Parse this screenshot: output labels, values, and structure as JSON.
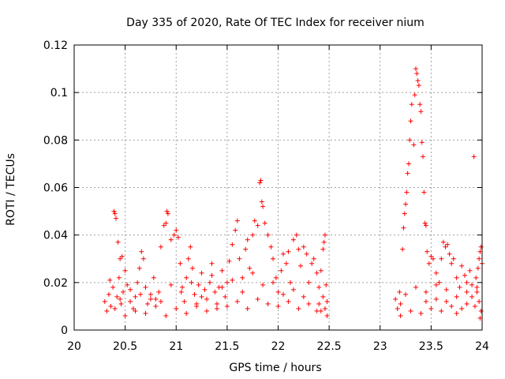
{
  "chart_data": {
    "type": "scatter",
    "title": "Day 335 of 2020, Rate Of TEC Index for receiver nium",
    "xlabel": "GPS time / hours",
    "ylabel": "ROTI / TECUs",
    "xlim": [
      20,
      24
    ],
    "ylim": [
      0,
      0.12
    ],
    "xticks": [
      "20",
      "20.5",
      "21",
      "21.5",
      "22",
      "22.5",
      "23",
      "23.5",
      "24"
    ],
    "yticks": [
      "0",
      "0.02",
      "0.04",
      "0.06",
      "0.08",
      "0.1",
      "0.12"
    ],
    "grid": true,
    "marker": "+",
    "color": "#ff0000",
    "series": [
      {
        "name": "ROTI",
        "points": [
          [
            20.3,
            0.012
          ],
          [
            20.32,
            0.008
          ],
          [
            20.34,
            0.015
          ],
          [
            20.36,
            0.01
          ],
          [
            20.38,
            0.018
          ],
          [
            20.4,
            0.009
          ],
          [
            20.42,
            0.014
          ],
          [
            20.44,
            0.022
          ],
          [
            20.46,
            0.011
          ],
          [
            20.48,
            0.016
          ],
          [
            20.39,
            0.05
          ],
          [
            20.4,
            0.049
          ],
          [
            20.41,
            0.047
          ],
          [
            20.43,
            0.037
          ],
          [
            20.45,
            0.03
          ],
          [
            20.47,
            0.031
          ],
          [
            20.5,
            0.025
          ],
          [
            20.52,
            0.019
          ],
          [
            20.55,
            0.012
          ],
          [
            20.58,
            0.009
          ],
          [
            20.6,
            0.014
          ],
          [
            20.62,
            0.02
          ],
          [
            20.64,
            0.026
          ],
          [
            20.66,
            0.033
          ],
          [
            20.68,
            0.03
          ],
          [
            20.7,
            0.018
          ],
          [
            20.72,
            0.011
          ],
          [
            20.75,
            0.015
          ],
          [
            20.78,
            0.022
          ],
          [
            20.8,
            0.013
          ],
          [
            20.83,
            0.016
          ],
          [
            20.85,
            0.035
          ],
          [
            20.88,
            0.044
          ],
          [
            20.9,
            0.045
          ],
          [
            20.91,
            0.05
          ],
          [
            20.92,
            0.049
          ],
          [
            20.95,
            0.038
          ],
          [
            20.98,
            0.04
          ],
          [
            21.0,
            0.042
          ],
          [
            21.02,
            0.039
          ],
          [
            21.04,
            0.028
          ],
          [
            21.06,
            0.018
          ],
          [
            21.08,
            0.012
          ],
          [
            21.1,
            0.022
          ],
          [
            21.12,
            0.03
          ],
          [
            21.14,
            0.035
          ],
          [
            21.16,
            0.026
          ],
          [
            21.18,
            0.015
          ],
          [
            21.2,
            0.01
          ],
          [
            21.22,
            0.019
          ],
          [
            21.25,
            0.024
          ],
          [
            21.28,
            0.017
          ],
          [
            21.3,
            0.013
          ],
          [
            21.33,
            0.02
          ],
          [
            21.35,
            0.028
          ],
          [
            21.38,
            0.016
          ],
          [
            21.4,
            0.011
          ],
          [
            21.42,
            0.018
          ],
          [
            21.45,
            0.025
          ],
          [
            21.48,
            0.014
          ],
          [
            21.5,
            0.02
          ],
          [
            21.52,
            0.029
          ],
          [
            21.55,
            0.036
          ],
          [
            21.58,
            0.042
          ],
          [
            21.6,
            0.046
          ],
          [
            21.62,
            0.03
          ],
          [
            21.65,
            0.022
          ],
          [
            21.68,
            0.034
          ],
          [
            21.7,
            0.038
          ],
          [
            21.72,
            0.026
          ],
          [
            21.75,
            0.04
          ],
          [
            21.77,
            0.046
          ],
          [
            21.8,
            0.044
          ],
          [
            21.82,
            0.062
          ],
          [
            21.83,
            0.063
          ],
          [
            21.84,
            0.054
          ],
          [
            21.85,
            0.052
          ],
          [
            21.87,
            0.045
          ],
          [
            21.9,
            0.04
          ],
          [
            21.93,
            0.035
          ],
          [
            21.95,
            0.03
          ],
          [
            21.98,
            0.022
          ],
          [
            22.0,
            0.016
          ],
          [
            22.03,
            0.025
          ],
          [
            22.05,
            0.032
          ],
          [
            22.08,
            0.028
          ],
          [
            22.1,
            0.033
          ],
          [
            22.12,
            0.02
          ],
          [
            22.15,
            0.038
          ],
          [
            22.18,
            0.04
          ],
          [
            22.2,
            0.034
          ],
          [
            22.22,
            0.027
          ],
          [
            22.25,
            0.035
          ],
          [
            22.28,
            0.032
          ],
          [
            22.3,
            0.02
          ],
          [
            22.33,
            0.028
          ],
          [
            22.35,
            0.03
          ],
          [
            22.38,
            0.024
          ],
          [
            22.4,
            0.018
          ],
          [
            22.42,
            0.025
          ],
          [
            22.44,
            0.034
          ],
          [
            22.45,
            0.037
          ],
          [
            22.46,
            0.04
          ],
          [
            22.47,
            0.019
          ],
          [
            22.48,
            0.012
          ],
          [
            22.48,
            0.006
          ],
          [
            22.46,
            0.009
          ],
          [
            22.44,
            0.014
          ],
          [
            22.42,
            0.008
          ],
          [
            22.4,
            0.011
          ],
          [
            20.5,
            0.006
          ],
          [
            20.6,
            0.008
          ],
          [
            20.7,
            0.007
          ],
          [
            20.8,
            0.01
          ],
          [
            20.9,
            0.006
          ],
          [
            21.0,
            0.009
          ],
          [
            21.1,
            0.007
          ],
          [
            21.2,
            0.011
          ],
          [
            21.3,
            0.008
          ],
          [
            21.4,
            0.009
          ],
          [
            21.5,
            0.01
          ],
          [
            21.6,
            0.012
          ],
          [
            21.7,
            0.009
          ],
          [
            21.8,
            0.013
          ],
          [
            21.9,
            0.011
          ],
          [
            22.0,
            0.01
          ],
          [
            22.1,
            0.012
          ],
          [
            22.2,
            0.009
          ],
          [
            22.3,
            0.011
          ],
          [
            22.38,
            0.008
          ],
          [
            20.35,
            0.021
          ],
          [
            20.55,
            0.017
          ],
          [
            20.75,
            0.013
          ],
          [
            20.95,
            0.019
          ],
          [
            21.15,
            0.02
          ],
          [
            21.35,
            0.023
          ],
          [
            21.55,
            0.021
          ],
          [
            21.75,
            0.024
          ],
          [
            21.95,
            0.02
          ],
          [
            22.15,
            0.017
          ],
          [
            20.45,
            0.013
          ],
          [
            20.65,
            0.015
          ],
          [
            20.85,
            0.012
          ],
          [
            21.05,
            0.016
          ],
          [
            21.25,
            0.014
          ],
          [
            21.45,
            0.018
          ],
          [
            21.65,
            0.016
          ],
          [
            21.85,
            0.019
          ],
          [
            22.05,
            0.015
          ],
          [
            22.25,
            0.014
          ],
          [
            23.15,
            0.013
          ],
          [
            23.17,
            0.009
          ],
          [
            23.19,
            0.016
          ],
          [
            23.2,
            0.011
          ],
          [
            23.22,
            0.034
          ],
          [
            23.23,
            0.043
          ],
          [
            23.24,
            0.049
          ],
          [
            23.25,
            0.053
          ],
          [
            23.26,
            0.058
          ],
          [
            23.27,
            0.066
          ],
          [
            23.28,
            0.07
          ],
          [
            23.29,
            0.08
          ],
          [
            23.3,
            0.088
          ],
          [
            23.31,
            0.095
          ],
          [
            23.33,
            0.078
          ],
          [
            23.34,
            0.099
          ],
          [
            23.35,
            0.11
          ],
          [
            23.36,
            0.108
          ],
          [
            23.37,
            0.105
          ],
          [
            23.38,
            0.103
          ],
          [
            23.39,
            0.095
          ],
          [
            23.4,
            0.092
          ],
          [
            23.41,
            0.079
          ],
          [
            23.42,
            0.073
          ],
          [
            23.43,
            0.058
          ],
          [
            23.44,
            0.045
          ],
          [
            23.45,
            0.044
          ],
          [
            23.46,
            0.033
          ],
          [
            23.48,
            0.028
          ],
          [
            23.5,
            0.031
          ],
          [
            23.52,
            0.03
          ],
          [
            23.55,
            0.024
          ],
          [
            23.58,
            0.02
          ],
          [
            23.6,
            0.03
          ],
          [
            23.62,
            0.037
          ],
          [
            23.64,
            0.035
          ],
          [
            23.66,
            0.036
          ],
          [
            23.68,
            0.032
          ],
          [
            23.7,
            0.028
          ],
          [
            23.72,
            0.03
          ],
          [
            23.75,
            0.022
          ],
          [
            23.78,
            0.018
          ],
          [
            23.8,
            0.027
          ],
          [
            23.83,
            0.023
          ],
          [
            23.85,
            0.02
          ],
          [
            23.88,
            0.025
          ],
          [
            23.9,
            0.019
          ],
          [
            23.92,
            0.073
          ],
          [
            23.94,
            0.022
          ],
          [
            23.96,
            0.026
          ],
          [
            23.97,
            0.03
          ],
          [
            23.98,
            0.033
          ],
          [
            23.99,
            0.035
          ],
          [
            24.0,
            0.028
          ],
          [
            23.99,
            0.008
          ],
          [
            23.98,
            0.005
          ],
          [
            23.97,
            0.012
          ],
          [
            23.95,
            0.016
          ],
          [
            23.93,
            0.01
          ],
          [
            23.9,
            0.014
          ],
          [
            23.2,
            0.006
          ],
          [
            23.3,
            0.008
          ],
          [
            23.4,
            0.007
          ],
          [
            23.5,
            0.009
          ],
          [
            23.6,
            0.008
          ],
          [
            23.7,
            0.01
          ],
          [
            23.8,
            0.009
          ],
          [
            23.85,
            0.011
          ],
          [
            23.75,
            0.007
          ],
          [
            23.65,
            0.012
          ],
          [
            23.25,
            0.015
          ],
          [
            23.35,
            0.018
          ],
          [
            23.45,
            0.016
          ],
          [
            23.55,
            0.019
          ],
          [
            23.65,
            0.017
          ],
          [
            23.75,
            0.014
          ],
          [
            23.85,
            0.016
          ],
          [
            23.95,
            0.018
          ],
          [
            23.45,
            0.012
          ],
          [
            23.55,
            0.013
          ]
        ]
      }
    ]
  }
}
